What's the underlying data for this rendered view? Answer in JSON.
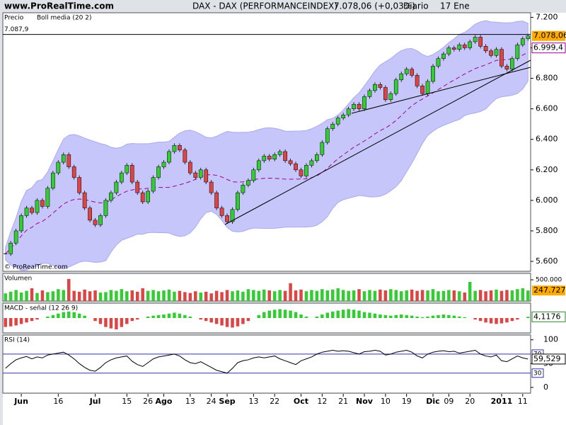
{
  "header": {
    "site": "www.ProRealTime.com",
    "instrument": "DAX - DAX (PERFORMANCEINDEX)",
    "quote": "7.078,06 (+0,03%)",
    "period": "Diario",
    "date": "17 Ene"
  },
  "chart_data": [
    {
      "type": "candlestick",
      "title": "Precio",
      "indicator": "Boll media (20 2)",
      "watermark": "© ProRealTime.com",
      "categories": [
        null,
        null,
        null,
        "Jun",
        null,
        null,
        null,
        null,
        null,
        null,
        "16",
        null,
        null,
        null,
        null,
        null,
        null,
        "Jul",
        null,
        null,
        null,
        null,
        null,
        "15",
        null,
        null,
        null,
        "26",
        null,
        null,
        "Ago",
        null,
        null,
        null,
        null,
        "13",
        null,
        null,
        null,
        "24",
        null,
        null,
        "Sep",
        null,
        null,
        null,
        null,
        "13",
        null,
        null,
        null,
        "22",
        null,
        null,
        null,
        null,
        "Oct",
        null,
        null,
        null,
        "12",
        null,
        null,
        null,
        "21",
        null,
        null,
        null,
        "Nov",
        null,
        null,
        null,
        "10",
        null,
        null,
        null,
        "19",
        null,
        null,
        null,
        null,
        "Dic",
        null,
        null,
        "09",
        null,
        null,
        null,
        "20",
        null,
        null,
        null,
        null,
        null,
        "2011",
        null,
        null,
        null,
        "11",
        null
      ],
      "values": [
        5650,
        5720,
        5800,
        5900,
        5950,
        5920,
        6000,
        5960,
        6080,
        6180,
        6250,
        6300,
        6220,
        6150,
        6050,
        5950,
        5870,
        5840,
        5900,
        6000,
        6050,
        6120,
        6180,
        6230,
        6120,
        6050,
        5990,
        6060,
        6150,
        6220,
        6250,
        6320,
        6360,
        6330,
        6250,
        6180,
        6150,
        6200,
        6120,
        6050,
        5950,
        5900,
        5860,
        5940,
        6050,
        6100,
        6130,
        6200,
        6260,
        6290,
        6270,
        6300,
        6320,
        6260,
        6240,
        6200,
        6160,
        6230,
        6260,
        6300,
        6380,
        6470,
        6500,
        6540,
        6560,
        6600,
        6630,
        6600,
        6680,
        6720,
        6760,
        6740,
        6660,
        6700,
        6790,
        6830,
        6860,
        6820,
        6750,
        6700,
        6780,
        6880,
        6930,
        6960,
        7000,
        6990,
        7020,
        7000,
        7040,
        7070,
        7010,
        6980,
        6950,
        6990,
        6880,
        6860,
        6930,
        7020,
        7060,
        7078.06
      ],
      "ylim": [
        5535,
        7230
      ],
      "yticks": [
        {
          "value": 5600,
          "label": "5.600"
        },
        {
          "value": 5800,
          "label": "5.800"
        },
        {
          "value": 6000,
          "label": "6.000"
        },
        {
          "value": 6200,
          "label": "6.200"
        },
        {
          "value": 6400,
          "label": "6.400"
        },
        {
          "value": 6600,
          "label": "6.600"
        },
        {
          "value": 6800,
          "label": "6.800"
        },
        {
          "value": 7000,
          "label": "7.000"
        },
        {
          "value": 7200,
          "label": "7.200"
        }
      ],
      "reference": {
        "value": 7087.9,
        "label": "7.087,9"
      },
      "last": {
        "value": 7078.06,
        "label": "7.078,06"
      },
      "band_mid": {
        "value": 6999.4,
        "label": "6.999,4"
      },
      "colors": {
        "up": "#33cc33",
        "down": "#dd4444",
        "band": "#c6c6fa",
        "mid": "#990099"
      }
    },
    {
      "type": "bar",
      "title": "Volumen",
      "values": [
        180000,
        220000,
        260000,
        200000,
        240000,
        300000,
        190000,
        250000,
        210000,
        230000,
        280000,
        260000,
        520000,
        240000,
        220000,
        270000,
        230000,
        250000,
        200000,
        210000,
        260000,
        240000,
        280000,
        230000,
        250000,
        220000,
        300000,
        240000,
        260000,
        230000,
        250000,
        270000,
        220000,
        240000,
        210000,
        190000,
        230000,
        200000,
        220000,
        180000,
        240000,
        210000,
        260000,
        230000,
        250000,
        220000,
        280000,
        260000,
        240000,
        270000,
        250000,
        230000,
        260000,
        240000,
        420000,
        250000,
        270000,
        230000,
        260000,
        240000,
        280000,
        250000,
        270000,
        300000,
        260000,
        240000,
        250000,
        280000,
        230000,
        260000,
        240000,
        270000,
        250000,
        280000,
        260000,
        230000,
        250000,
        270000,
        240000,
        260000,
        250000,
        280000,
        230000,
        240000,
        260000,
        250000,
        230000,
        200000,
        450000,
        240000,
        260000,
        230000,
        250000,
        270000,
        240000,
        260000,
        250000,
        280000,
        300000,
        247727
      ],
      "ylim": [
        0,
        650000
      ],
      "yticks": [
        {
          "value": 500000,
          "label": "500.000"
        }
      ],
      "last": {
        "value": 247727,
        "label": "247.727"
      }
    },
    {
      "type": "bar",
      "title": "MACD - señal (12 26 9)",
      "values": [
        -30,
        -28,
        -25,
        -20,
        -15,
        -10,
        -5,
        0,
        5,
        10,
        15,
        20,
        22,
        20,
        15,
        8,
        0,
        -10,
        -20,
        -30,
        -35,
        -38,
        -30,
        -20,
        -10,
        -5,
        0,
        5,
        8,
        10,
        12,
        15,
        18,
        15,
        10,
        5,
        0,
        -5,
        -10,
        -15,
        -20,
        -25,
        -30,
        -32,
        -28,
        -20,
        -10,
        0,
        10,
        20,
        25,
        28,
        30,
        28,
        25,
        20,
        12,
        5,
        0,
        5,
        12,
        18,
        22,
        25,
        28,
        30,
        28,
        25,
        20,
        18,
        15,
        12,
        10,
        8,
        10,
        12,
        10,
        8,
        5,
        3,
        5,
        8,
        10,
        12,
        10,
        8,
        5,
        3,
        0,
        -5,
        -10,
        -15,
        -18,
        -20,
        -18,
        -15,
        -10,
        -5,
        0,
        4.1176
      ],
      "ylim": [
        -50,
        50
      ],
      "last": {
        "value": 4.1176,
        "label": "4,1176"
      }
    },
    {
      "type": "line",
      "title": "RSI (14)",
      "values": [
        40,
        50,
        58,
        62,
        65,
        60,
        64,
        62,
        68,
        70,
        72,
        74,
        68,
        60,
        50,
        42,
        36,
        34,
        42,
        52,
        58,
        62,
        64,
        66,
        55,
        48,
        44,
        52,
        60,
        64,
        66,
        68,
        70,
        66,
        58,
        52,
        50,
        54,
        48,
        42,
        36,
        33,
        30,
        40,
        52,
        56,
        58,
        62,
        64,
        62,
        64,
        66,
        60,
        56,
        52,
        48,
        56,
        60,
        64,
        70,
        74,
        76,
        78,
        76,
        77,
        76,
        73,
        70,
        75,
        76,
        78,
        76,
        68,
        70,
        74,
        76,
        78,
        74,
        66,
        62,
        70,
        74,
        76,
        77,
        75,
        76,
        72,
        74,
        76,
        78,
        70,
        66,
        64,
        68,
        56,
        54,
        60,
        66,
        62,
        59.529
      ],
      "ylim": [
        -12,
        110
      ],
      "yticks": [
        0,
        50,
        100
      ],
      "levels": [
        30,
        70
      ],
      "last": {
        "value": 59.529,
        "label": "59,529"
      }
    }
  ]
}
